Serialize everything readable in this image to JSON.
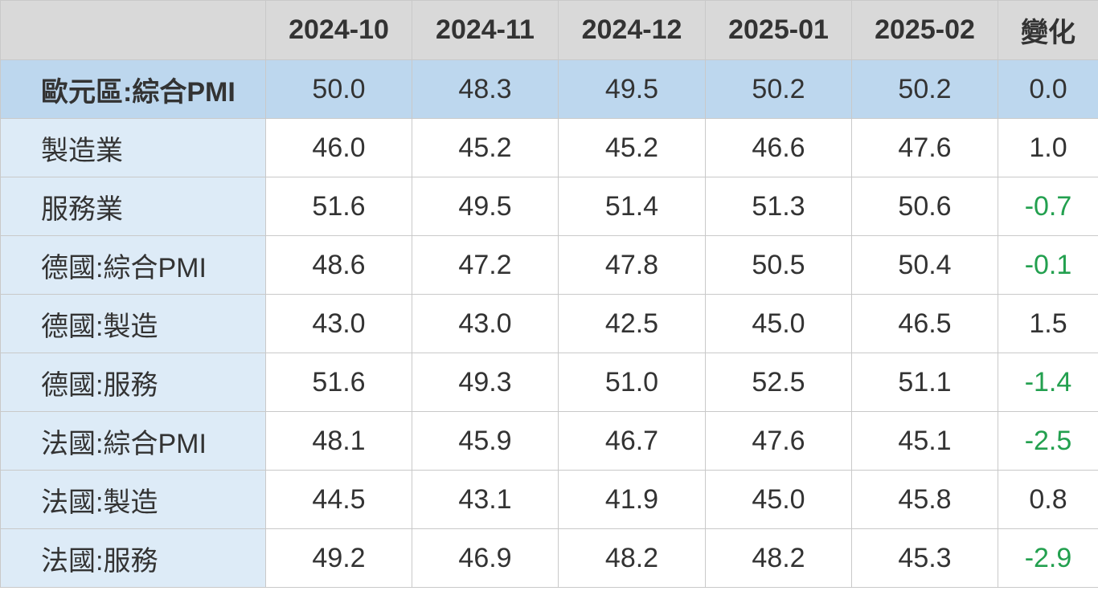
{
  "table": {
    "header": [
      "2024-10",
      "2024-11",
      "2024-12",
      "2025-01",
      "2025-02",
      "變化"
    ],
    "rows": [
      {
        "label": "歐元區:綜合PMI",
        "cells": [
          "50.0",
          "48.3",
          "49.5",
          "50.2",
          "50.2",
          "0.0"
        ]
      },
      {
        "label": "製造業",
        "cells": [
          "46.0",
          "45.2",
          "45.2",
          "46.6",
          "47.6",
          "1.0"
        ]
      },
      {
        "label": "服務業",
        "cells": [
          "51.6",
          "49.5",
          "51.4",
          "51.3",
          "50.6",
          "-0.7"
        ]
      },
      {
        "label": "德國:綜合PMI",
        "cells": [
          "48.6",
          "47.2",
          "47.8",
          "50.5",
          "50.4",
          "-0.1"
        ]
      },
      {
        "label": "德國:製造",
        "cells": [
          "43.0",
          "43.0",
          "42.5",
          "45.0",
          "46.5",
          "1.5"
        ]
      },
      {
        "label": "德國:服務",
        "cells": [
          "51.6",
          "49.3",
          "51.0",
          "52.5",
          "51.1",
          "-1.4"
        ]
      },
      {
        "label": "法國:綜合PMI",
        "cells": [
          "48.1",
          "45.9",
          "46.7",
          "47.6",
          "45.1",
          "-2.5"
        ]
      },
      {
        "label": "法國:製造",
        "cells": [
          "44.5",
          "43.1",
          "41.9",
          "45.0",
          "45.8",
          "0.8"
        ]
      },
      {
        "label": "法國:服務",
        "cells": [
          "49.2",
          "46.9",
          "48.2",
          "48.2",
          "45.3",
          "-2.9"
        ]
      }
    ]
  }
}
